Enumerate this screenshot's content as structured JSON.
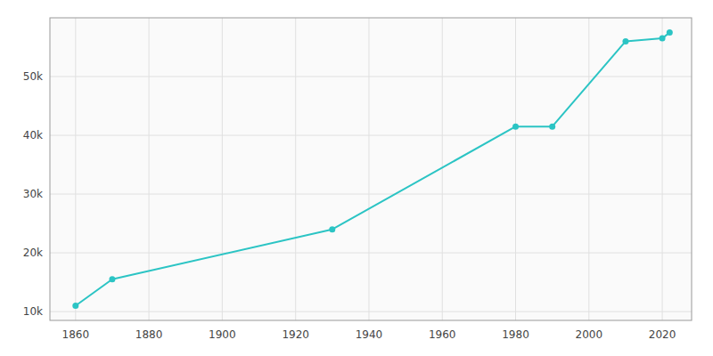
{
  "chart_data": {
    "type": "line",
    "x": [
      1860,
      1870,
      1930,
      1980,
      1990,
      2010,
      2020,
      2022
    ],
    "values": [
      11000,
      15500,
      24000,
      41500,
      41500,
      56000,
      56500,
      57500
    ],
    "color": "#2BC4C4",
    "marker": "circle",
    "grid": true,
    "xlim": [
      1853,
      2028
    ],
    "ylim": [
      8500,
      60000
    ],
    "xticks": [
      1860,
      1880,
      1900,
      1920,
      1940,
      1960,
      1980,
      2000,
      2020
    ],
    "yticks": [
      {
        "value": 10000,
        "label": "10k"
      },
      {
        "value": 20000,
        "label": "20k"
      },
      {
        "value": 30000,
        "label": "30k"
      },
      {
        "value": 40000,
        "label": "40k"
      },
      {
        "value": 50000,
        "label": "50k"
      }
    ]
  }
}
